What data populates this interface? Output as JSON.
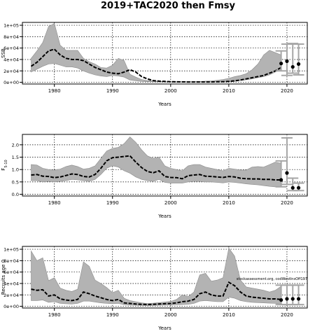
{
  "title": "2019+TAC2020 then Fmsy",
  "colors": {
    "band": "#b3b3b3",
    "median": "#000000",
    "frame": "#000000",
    "grid": "#000000",
    "error_bar": "#a6a6a6"
  },
  "chart_data": [
    {
      "type": "line",
      "xlabel": "Years",
      "ylabel": "SSB",
      "grid": true,
      "xlim": [
        1974.5,
        2023.5
      ],
      "ylim": [
        -3000,
        105000
      ],
      "x_ticks": [
        1980,
        1990,
        2000,
        2010,
        2020
      ],
      "y_ticks": [
        0,
        20000,
        40000,
        60000,
        80000,
        100000
      ],
      "y_tick_labels": [
        "0e+00",
        "2e+04",
        "4e+04",
        "6e+04",
        "8e+04",
        "1e+05"
      ],
      "x": [
        1976,
        1977,
        1978,
        1979,
        1980,
        1981,
        1982,
        1983,
        1984,
        1985,
        1986,
        1987,
        1988,
        1989,
        1990,
        1991,
        1992,
        1993,
        1994,
        1995,
        1996,
        1997,
        1998,
        1999,
        2000,
        2001,
        2002,
        2003,
        2004,
        2005,
        2006,
        2007,
        2008,
        2009,
        2010,
        2011,
        2012,
        2013,
        2014,
        2015,
        2016,
        2017,
        2018,
        2019
      ],
      "median": [
        28000,
        35000,
        45000,
        55000,
        58000,
        48000,
        42000,
        40000,
        40000,
        38000,
        32000,
        26000,
        22000,
        18000,
        16000,
        15000,
        18000,
        22000,
        18000,
        10000,
        6000,
        3000,
        2000,
        1500,
        1000,
        800,
        700,
        600,
        500,
        500,
        500,
        600,
        800,
        1000,
        1500,
        2500,
        4000,
        6000,
        8000,
        10000,
        12000,
        16000,
        20000,
        26000
      ],
      "upper": [
        42000,
        55000,
        70000,
        98000,
        103000,
        65000,
        56000,
        56000,
        56000,
        42000,
        36000,
        32000,
        26000,
        25000,
        30000,
        42000,
        38000,
        14000,
        9000,
        5000,
        3000,
        2200,
        1800,
        1300,
        1100,
        1000,
        1000,
        1100,
        1300,
        1600,
        2000,
        2500,
        3500,
        5000,
        7000,
        10000,
        12000,
        15000,
        22000,
        32000,
        48000,
        56000,
        52000,
        48000
      ],
      "lower": [
        18000,
        23000,
        28000,
        32000,
        33000,
        30000,
        27000,
        27000,
        25000,
        20000,
        16000,
        13000,
        11000,
        10000,
        12000,
        11000,
        9000,
        4000,
        2500,
        1500,
        1000,
        800,
        600,
        500,
        400,
        300,
        300,
        300,
        300,
        300,
        300,
        300,
        400,
        500,
        800,
        1500,
        3000,
        4500,
        6000,
        8000,
        10000,
        13000,
        18000,
        22000
      ],
      "projection": [
        {
          "x": 2019,
          "median": 33000,
          "lower": 20000,
          "upper": 55000
        },
        {
          "x": 2020,
          "median": 37000,
          "lower": 12000,
          "upper": 67000
        },
        {
          "x": 2021,
          "median": 27000,
          "lower": 16000,
          "upper": 68000
        },
        {
          "x": 2022,
          "median": 32000,
          "lower": 13000,
          "upper": 67000
        }
      ]
    },
    {
      "type": "line",
      "xlabel": "Years",
      "ylabel": "F",
      "ylabel_sub": "5-10",
      "grid": true,
      "xlim": [
        1974.5,
        2023.5
      ],
      "ylim": [
        -0.07,
        2.42
      ],
      "x_ticks": [
        1980,
        1990,
        2000,
        2010,
        2020
      ],
      "y_ticks": [
        0.0,
        0.5,
        1.0,
        1.5,
        2.0
      ],
      "y_tick_labels": [
        "0.0",
        "0.5",
        "1.0",
        "1.5",
        "2.0"
      ],
      "x": [
        1976,
        1977,
        1978,
        1979,
        1980,
        1981,
        1982,
        1983,
        1984,
        1985,
        1986,
        1987,
        1988,
        1989,
        1990,
        1991,
        1992,
        1993,
        1994,
        1995,
        1996,
        1997,
        1998,
        1999,
        2000,
        2001,
        2002,
        2003,
        2004,
        2005,
        2006,
        2007,
        2008,
        2009,
        2010,
        2011,
        2012,
        2013,
        2014,
        2015,
        2016,
        2017,
        2018,
        2019
      ],
      "median": [
        0.78,
        0.8,
        0.73,
        0.72,
        0.67,
        0.7,
        0.76,
        0.82,
        0.8,
        0.72,
        0.7,
        0.8,
        1.05,
        1.35,
        1.48,
        1.5,
        1.53,
        1.55,
        1.3,
        1.08,
        0.92,
        0.87,
        0.95,
        0.72,
        0.68,
        0.67,
        0.63,
        0.75,
        0.78,
        0.8,
        0.73,
        0.72,
        0.7,
        0.68,
        0.72,
        0.7,
        0.65,
        0.63,
        0.62,
        0.62,
        0.6,
        0.6,
        0.58,
        0.58
      ],
      "upper": [
        1.2,
        1.18,
        1.05,
        1.0,
        0.98,
        1.02,
        1.12,
        1.18,
        1.12,
        1.02,
        1.05,
        1.15,
        1.45,
        1.75,
        1.85,
        1.9,
        2.05,
        2.32,
        2.1,
        1.8,
        1.55,
        1.45,
        1.5,
        1.15,
        1.05,
        1.0,
        0.95,
        1.15,
        1.2,
        1.2,
        1.1,
        1.05,
        1.0,
        0.95,
        1.05,
        1.02,
        0.98,
        0.98,
        1.1,
        1.12,
        1.1,
        1.2,
        1.3,
        1.25
      ],
      "lower": [
        0.55,
        0.55,
        0.5,
        0.52,
        0.5,
        0.52,
        0.55,
        0.6,
        0.58,
        0.55,
        0.52,
        0.6,
        0.8,
        1.05,
        1.15,
        1.1,
        0.95,
        0.85,
        0.7,
        0.6,
        0.55,
        0.52,
        0.6,
        0.48,
        0.45,
        0.45,
        0.45,
        0.5,
        0.52,
        0.52,
        0.5,
        0.5,
        0.48,
        0.46,
        0.5,
        0.48,
        0.45,
        0.42,
        0.4,
        0.38,
        0.35,
        0.32,
        0.3,
        0.3
      ],
      "projection": [
        {
          "x": 2019,
          "median": 0.58,
          "lower": 0.3,
          "upper": 1.35
        },
        {
          "x": 2020,
          "median": 0.86,
          "lower": 0.4,
          "upper": 2.28
        },
        {
          "x": 2021,
          "median": 0.26,
          "lower": 0.15,
          "upper": 0.65
        },
        {
          "x": 2022,
          "median": 0.26,
          "lower": 0.15,
          "upper": 0.45
        }
      ]
    },
    {
      "type": "line",
      "xlabel": "Years",
      "ylabel": "Recruits age 0",
      "annotation": "stockassessment.org, codWestInsOff197",
      "grid": true,
      "xlim": [
        1974.5,
        2023.5
      ],
      "ylim": [
        -3000,
        105000
      ],
      "x_ticks": [
        1980,
        1990,
        2000,
        2010,
        2020
      ],
      "y_ticks": [
        0,
        20000,
        40000,
        60000,
        80000,
        100000
      ],
      "y_tick_labels": [
        "0e+00",
        "2e+04",
        "4e+04",
        "6e+04",
        "8e+04",
        "1e+05"
      ],
      "x": [
        1976,
        1977,
        1978,
        1979,
        1980,
        1981,
        1982,
        1983,
        1984,
        1985,
        1986,
        1987,
        1988,
        1989,
        1990,
        1991,
        1992,
        1993,
        1994,
        1995,
        1996,
        1997,
        1998,
        1999,
        2000,
        2001,
        2002,
        2003,
        2004,
        2005,
        2006,
        2007,
        2008,
        2009,
        2010,
        2011,
        2012,
        2013,
        2014,
        2015,
        2016,
        2017,
        2018,
        2019
      ],
      "median": [
        30000,
        28000,
        29000,
        18000,
        20000,
        13000,
        11000,
        10000,
        12000,
        25000,
        22000,
        18000,
        15000,
        12000,
        10000,
        12000,
        6000,
        5000,
        4000,
        3500,
        3000,
        3500,
        4000,
        4500,
        5000,
        6000,
        8000,
        9000,
        12000,
        22000,
        25000,
        20000,
        18000,
        18000,
        42000,
        36000,
        25000,
        18000,
        16000,
        15000,
        14000,
        13000,
        13000,
        12000
      ],
      "upper": [
        97000,
        80000,
        85000,
        45000,
        50000,
        32000,
        28000,
        26000,
        30000,
        78000,
        70000,
        46000,
        40000,
        33000,
        24000,
        28000,
        14000,
        10000,
        8000,
        6000,
        5000,
        5500,
        6500,
        7500,
        8500,
        12000,
        20000,
        17000,
        25000,
        55000,
        58000,
        44000,
        46000,
        50000,
        102000,
        88000,
        46000,
        34000,
        32000,
        30000,
        28000,
        25000,
        28000,
        35000
      ],
      "lower": [
        10000,
        10000,
        11000,
        7000,
        8000,
        5000,
        4500,
        4000,
        5000,
        9000,
        9000,
        7500,
        6000,
        5000,
        4500,
        5000,
        2500,
        2000,
        1800,
        1500,
        1200,
        1500,
        1800,
        2000,
        2200,
        2500,
        3000,
        3500,
        5000,
        9000,
        10000,
        9000,
        8000,
        8000,
        16000,
        14000,
        10000,
        8000,
        7000,
        6500,
        6000,
        5500,
        5000,
        4000
      ],
      "projection": [
        {
          "x": 2019,
          "median": 11000,
          "lower": 3000,
          "upper": 37000
        },
        {
          "x": 2020,
          "median": 13000,
          "lower": 3000,
          "upper": 37000
        },
        {
          "x": 2021,
          "median": 13000,
          "lower": 3000,
          "upper": 37000
        },
        {
          "x": 2022,
          "median": 13000,
          "lower": 3000,
          "upper": 37000
        }
      ]
    }
  ]
}
